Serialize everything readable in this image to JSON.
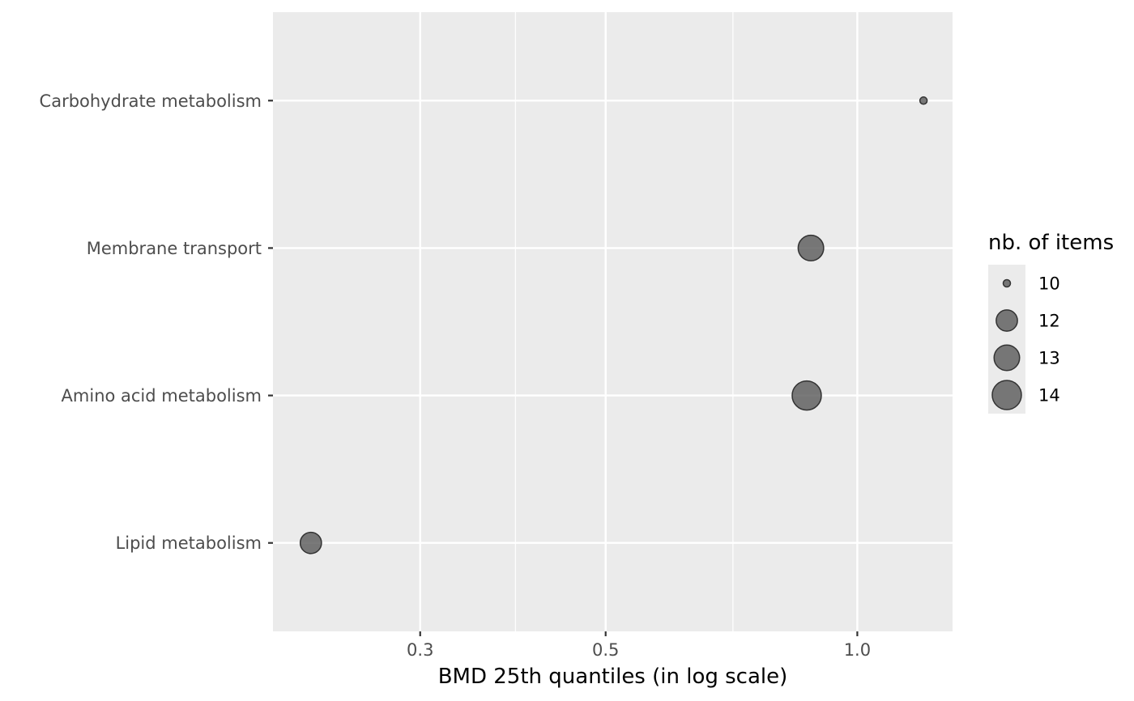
{
  "chart_data": {
    "type": "scatter",
    "title": "",
    "xlabel": "BMD 25th quantiles (in log scale)",
    "ylabel": "",
    "x_scale": "log10",
    "xlim": [
      0.2,
      1.3
    ],
    "x_ticks": [
      {
        "value": 0.3,
        "label": "0.3"
      },
      {
        "value": 0.5,
        "label": "0.5"
      },
      {
        "value": 1.0,
        "label": "1.0"
      }
    ],
    "x_minor_ticks": [
      0.39,
      0.71
    ],
    "categories": [
      "Carbohydrate metabolism",
      "Membrane transport",
      "Amino acid metabolism",
      "Lipid metabolism"
    ],
    "points": [
      {
        "category": "Carbohydrate metabolism",
        "x": 1.2,
        "size": 10
      },
      {
        "category": "Membrane transport",
        "x": 0.88,
        "size": 13
      },
      {
        "category": "Amino acid metabolism",
        "x": 0.87,
        "size": 14
      },
      {
        "category": "Lipid metabolism",
        "x": 0.222,
        "size": 12
      }
    ],
    "legend": {
      "title": "nb. of items",
      "placement": "right",
      "entries": [
        {
          "value": 10,
          "label": "10"
        },
        {
          "value": 12,
          "label": "12"
        },
        {
          "value": 13,
          "label": "13"
        },
        {
          "value": 14,
          "label": "14"
        }
      ]
    },
    "colors": {
      "panel": "#ebebeb",
      "grid": "#ffffff",
      "point_fill": "#595959",
      "point_stroke": "#333333",
      "tick": "#333333"
    }
  }
}
